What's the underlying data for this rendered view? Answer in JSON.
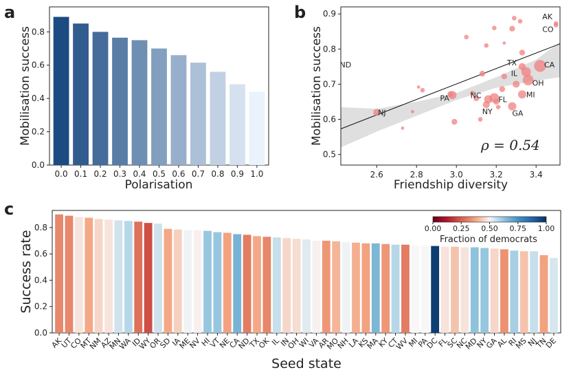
{
  "panel_labels": {
    "a": "a",
    "b": "b",
    "c": "c"
  },
  "colors": {
    "bar_dark": "#1c4b82",
    "bar_light": "#eaf2fb",
    "point": "#f08080",
    "fit_line": "#111111",
    "ci_band": "#d9d9d9"
  },
  "chart_data": [
    {
      "type": "bar",
      "panel": "a",
      "xlabel": "Polarisation",
      "ylabel": "Mobilisation success",
      "categories": [
        "0.0",
        "0.1",
        "0.2",
        "0.3",
        "0.4",
        "0.5",
        "0.6",
        "0.7",
        "0.8",
        "0.9",
        "1.0"
      ],
      "values": [
        0.89,
        0.85,
        0.8,
        0.765,
        0.75,
        0.7,
        0.66,
        0.615,
        0.56,
        0.485,
        0.44
      ],
      "ylim": [
        0,
        0.95
      ],
      "yticks": [
        "0.0",
        "0.2",
        "0.4",
        "0.6",
        "0.8"
      ]
    },
    {
      "type": "scatter",
      "panel": "b",
      "xlabel": "Friendship diversity",
      "ylabel": "Mobilisation success",
      "xlim": [
        2.42,
        3.52
      ],
      "ylim": [
        0.47,
        0.92
      ],
      "xticks": [
        "2.6",
        "2.8",
        "3.0",
        "3.2",
        "3.4"
      ],
      "yticks": [
        "0.5",
        "0.6",
        "0.7",
        "0.8",
        "0.9"
      ],
      "annotation": "ρ = 0.54",
      "fit": {
        "x0": 2.42,
        "y0": 0.573,
        "x1": 3.52,
        "y1": 0.815
      },
      "ci_band": {
        "x": [
          2.42,
          2.6,
          2.8,
          3.0,
          3.2,
          3.4,
          3.52
        ],
        "lower": [
          0.52,
          0.565,
          0.61,
          0.655,
          0.69,
          0.71,
          0.72
        ],
        "upper": [
          0.635,
          0.63,
          0.65,
          0.675,
          0.72,
          0.77,
          0.82
        ]
      },
      "points": [
        {
          "x": 3.5,
          "y": 0.873,
          "s": 2,
          "label": "AK"
        },
        {
          "x": 3.5,
          "y": 0.868,
          "s": 2,
          "label": "CO"
        },
        {
          "x": 2.47,
          "y": 0.756,
          "s": 0,
          "label": "ND"
        },
        {
          "x": 3.42,
          "y": 0.752,
          "s": 8,
          "label": "CA"
        },
        {
          "x": 3.35,
          "y": 0.735,
          "s": 6,
          "label": "IL"
        },
        {
          "x": 3.33,
          "y": 0.75,
          "s": 4,
          "label": "TX"
        },
        {
          "x": 3.36,
          "y": 0.712,
          "s": 7,
          "label": "OH"
        },
        {
          "x": 3.33,
          "y": 0.671,
          "s": 5,
          "label": "MI"
        },
        {
          "x": 3.19,
          "y": 0.661,
          "s": 6,
          "label": "FL"
        },
        {
          "x": 3.16,
          "y": 0.657,
          "s": 5,
          "label": "NC"
        },
        {
          "x": 3.15,
          "y": 0.642,
          "s": 4,
          "label": "NY"
        },
        {
          "x": 3.28,
          "y": 0.637,
          "s": 5,
          "label": "GA"
        },
        {
          "x": 2.98,
          "y": 0.669,
          "s": 5,
          "label": "PA"
        },
        {
          "x": 2.6,
          "y": 0.62,
          "s": 4,
          "label": "NJ"
        },
        {
          "x": 3.29,
          "y": 0.888,
          "s": 2,
          "label": ""
        },
        {
          "x": 3.32,
          "y": 0.879,
          "s": 2,
          "label": ""
        },
        {
          "x": 3.19,
          "y": 0.86,
          "s": 2,
          "label": ""
        },
        {
          "x": 3.28,
          "y": 0.858,
          "s": 3,
          "label": ""
        },
        {
          "x": 3.05,
          "y": 0.834,
          "s": 2,
          "label": ""
        },
        {
          "x": 3.24,
          "y": 0.817,
          "s": 1,
          "label": ""
        },
        {
          "x": 3.15,
          "y": 0.81,
          "s": 2,
          "label": ""
        },
        {
          "x": 3.33,
          "y": 0.79,
          "s": 3,
          "label": ""
        },
        {
          "x": 3.13,
          "y": 0.73,
          "s": 3,
          "label": ""
        },
        {
          "x": 3.24,
          "y": 0.722,
          "s": 3,
          "label": ""
        },
        {
          "x": 3.3,
          "y": 0.7,
          "s": 4,
          "label": ""
        },
        {
          "x": 3.23,
          "y": 0.686,
          "s": 3,
          "label": ""
        },
        {
          "x": 2.81,
          "y": 0.692,
          "s": 1,
          "label": ""
        },
        {
          "x": 2.83,
          "y": 0.683,
          "s": 2,
          "label": ""
        },
        {
          "x": 2.97,
          "y": 0.672,
          "s": 3,
          "label": ""
        },
        {
          "x": 3.1,
          "y": 0.66,
          "s": 3,
          "label": ""
        },
        {
          "x": 3.2,
          "y": 0.65,
          "s": 3,
          "label": ""
        },
        {
          "x": 2.99,
          "y": 0.593,
          "s": 3,
          "label": ""
        },
        {
          "x": 3.12,
          "y": 0.6,
          "s": 2,
          "label": ""
        },
        {
          "x": 2.78,
          "y": 0.622,
          "s": 1,
          "label": ""
        },
        {
          "x": 2.73,
          "y": 0.575,
          "s": 1,
          "label": ""
        },
        {
          "x": 3.08,
          "y": 0.675,
          "s": 2,
          "label": ""
        },
        {
          "x": 3.21,
          "y": 0.635,
          "s": 2,
          "label": ""
        }
      ]
    },
    {
      "type": "bar",
      "panel": "c",
      "xlabel": "Seed state",
      "ylabel": "Success rate",
      "ylim": [
        0,
        0.93
      ],
      "yticks": [
        "0.0",
        "0.2",
        "0.4",
        "0.6",
        "0.8"
      ],
      "colorbar": {
        "label": "Fraction of democrats",
        "ticks": [
          "0.00",
          "0.25",
          "0.50",
          "0.75",
          "1.00"
        ]
      },
      "categories": [
        "AK",
        "UT",
        "CO",
        "MT",
        "NM",
        "AZ",
        "MN",
        "WA",
        "ID",
        "WY",
        "OR",
        "SD",
        "IA",
        "ME",
        "NV",
        "HI",
        "VT",
        "NE",
        "CA",
        "ND",
        "TX",
        "OK",
        "IL",
        "IN",
        "OH",
        "WI",
        "VA",
        "AR",
        "MO",
        "NH",
        "LA",
        "KS",
        "MA",
        "KY",
        "CT",
        "WV",
        "MI",
        "PA",
        "DC",
        "FL",
        "SC",
        "NC",
        "MD",
        "NY",
        "GA",
        "AL",
        "RI",
        "MS",
        "NJ",
        "TN",
        "DE"
      ],
      "values": [
        0.9,
        0.89,
        0.88,
        0.875,
        0.865,
        0.86,
        0.855,
        0.85,
        0.845,
        0.835,
        0.83,
        0.79,
        0.785,
        0.78,
        0.78,
        0.775,
        0.765,
        0.76,
        0.75,
        0.745,
        0.735,
        0.73,
        0.725,
        0.72,
        0.715,
        0.71,
        0.7,
        0.7,
        0.695,
        0.69,
        0.685,
        0.68,
        0.68,
        0.675,
        0.67,
        0.67,
        0.665,
        0.665,
        0.66,
        0.655,
        0.655,
        0.65,
        0.65,
        0.645,
        0.64,
        0.635,
        0.625,
        0.62,
        0.62,
        0.59,
        0.57
      ],
      "fraction_democrats": [
        0.32,
        0.32,
        0.47,
        0.38,
        0.45,
        0.47,
        0.55,
        0.58,
        0.28,
        0.22,
        0.55,
        0.38,
        0.44,
        0.51,
        0.49,
        0.62,
        0.62,
        0.37,
        0.67,
        0.3,
        0.38,
        0.32,
        0.56,
        0.45,
        0.46,
        0.53,
        0.49,
        0.35,
        0.4,
        0.51,
        0.39,
        0.37,
        0.66,
        0.35,
        0.58,
        0.3,
        0.5,
        0.5,
        0.97,
        0.47,
        0.42,
        0.47,
        0.63,
        0.62,
        0.45,
        0.34,
        0.6,
        0.42,
        0.56,
        0.37,
        0.54
      ]
    }
  ]
}
